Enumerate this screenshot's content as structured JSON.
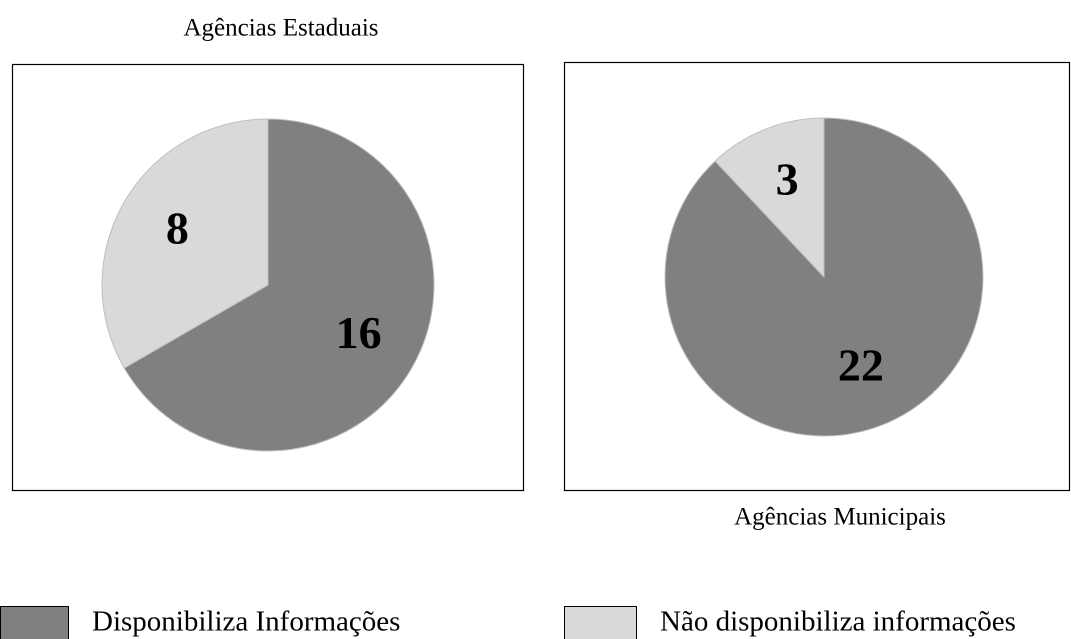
{
  "chart_data": [
    {
      "type": "pie",
      "title": "Agências Estaduais",
      "values": [
        16,
        8
      ]
    },
    {
      "type": "pie",
      "title": "Agências Municipais",
      "values": [
        22,
        3
      ]
    }
  ],
  "legend": [
    {
      "name": "Disponibiliza Informações",
      "color": "#808080"
    },
    {
      "name": "Não disponibiliza informações",
      "color": "#d9d9d9"
    }
  ]
}
